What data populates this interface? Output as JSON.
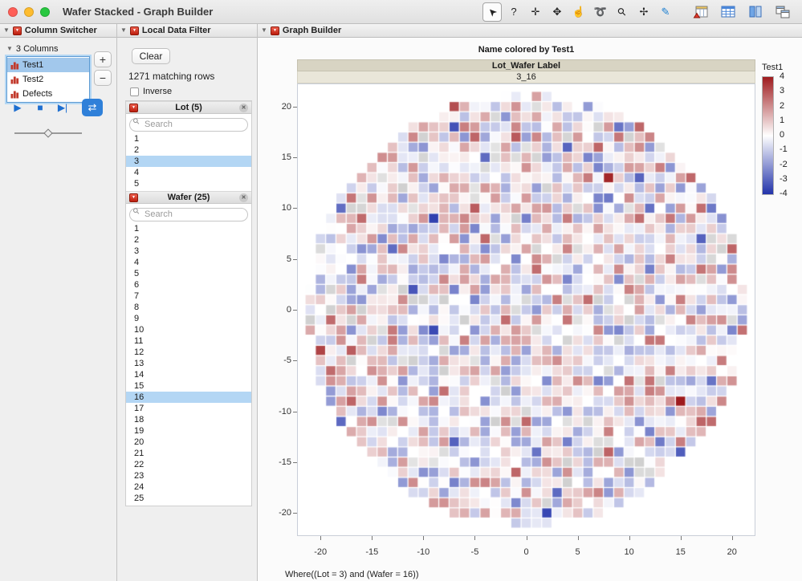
{
  "icons": {
    "collapse": "▼",
    "menu": "▼",
    "close": "✕",
    "search": "⚲"
  },
  "window": {
    "title": "Wafer Stacked - Graph Builder",
    "traffic_lights": [
      {
        "name": "close-button",
        "color": "#ff5f57"
      },
      {
        "name": "minimize-button",
        "color": "#febc2e"
      },
      {
        "name": "zoom-button",
        "color": "#28c840"
      }
    ],
    "tools": [
      {
        "name": "arrow-tool-icon",
        "glyph": "➤",
        "rotate": -135,
        "selected": true
      },
      {
        "name": "help-tool-icon",
        "glyph": "?",
        "rotate": 0,
        "selected": false
      },
      {
        "name": "brush-tool-icon",
        "glyph": "✛",
        "rotate": 0,
        "selected": false
      },
      {
        "name": "move-tool-icon",
        "glyph": "✥",
        "rotate": 0,
        "selected": false
      },
      {
        "name": "grabber-tool-icon",
        "glyph": "☝",
        "rotate": 0,
        "selected": false
      },
      {
        "name": "lasso-tool-icon",
        "glyph": "➰",
        "rotate": 0,
        "selected": false
      },
      {
        "name": "magnifier-tool-icon",
        "glyph": "⚲",
        "rotate": -45,
        "selected": false
      },
      {
        "name": "crosshair-tool-icon",
        "glyph": "✢",
        "rotate": 0,
        "selected": false
      },
      {
        "name": "annotate-tool-icon",
        "glyph": "✎",
        "rotate": 0,
        "selected": false,
        "color": "#1d7fd1"
      }
    ],
    "app_buttons": [
      "data-table-button",
      "grid-table-button",
      "columns-panel-button",
      "window-layout-button"
    ]
  },
  "column_switcher": {
    "title": "Column Switcher",
    "header_label": "3 Columns",
    "items": [
      {
        "label": "Test1",
        "selected": true
      },
      {
        "label": "Test2",
        "selected": false
      },
      {
        "label": "Defects",
        "selected": false
      }
    ],
    "add_label": "+",
    "remove_label": "−",
    "playback": [
      {
        "name": "play-button",
        "glyph": "▶",
        "active": false
      },
      {
        "name": "stop-button",
        "glyph": "■",
        "active": false
      },
      {
        "name": "step-button",
        "glyph": "▶|",
        "active": false
      },
      {
        "name": "loop-button",
        "glyph": "⇄",
        "active": true
      }
    ]
  },
  "data_filter": {
    "title": "Local Data Filter",
    "clear_label": "Clear",
    "matching_rows": "1271 matching rows",
    "inverse_label": "Inverse",
    "inverse_checked": false,
    "filters": [
      {
        "label": "Lot (5)",
        "search_placeholder": "Search",
        "values": [
          "1",
          "2",
          "3",
          "4",
          "5"
        ],
        "selected": [
          "3"
        ]
      },
      {
        "label": "Wafer (25)",
        "search_placeholder": "Search",
        "values": [
          "1",
          "2",
          "3",
          "4",
          "5",
          "6",
          "7",
          "8",
          "9",
          "10",
          "11",
          "12",
          "13",
          "14",
          "15",
          "16",
          "17",
          "18",
          "19",
          "20",
          "21",
          "22",
          "23",
          "24",
          "25"
        ],
        "selected": [
          "16"
        ]
      }
    ]
  },
  "graph": {
    "title": "Graph Builder",
    "chart_title": "Name colored by Test1",
    "band_label": "Lot_Wafer Label",
    "band_value": "3_16",
    "where_text": "Where((Lot = 3) and (Wafer = 16))"
  },
  "chart_data": {
    "type": "heatmap",
    "title": "Name colored by Test1",
    "subtitle_band": [
      "Lot_Wafer Label",
      "3_16"
    ],
    "x_ticks": [
      -20,
      -15,
      -10,
      -5,
      0,
      5,
      10,
      15,
      20
    ],
    "y_ticks": [
      20,
      15,
      10,
      5,
      0,
      -5,
      -10,
      -15,
      -20
    ],
    "x_range": [
      -22.2,
      22.2
    ],
    "y_range": [
      -22.2,
      22.2
    ],
    "wafer_radius": 21.2,
    "cell_size": 1,
    "value_range": [
      -4,
      4
    ],
    "legend": {
      "title": "Test1",
      "ticks": [
        4,
        3,
        2,
        1,
        0,
        -1,
        -2,
        -3,
        -4
      ],
      "max_color": "#9e1b1e",
      "mid_color": "#ffffff",
      "min_color": "#2233aa"
    },
    "seed": 20240416,
    "gap_fraction": 0.045,
    "gray_fraction": 0.07
  }
}
